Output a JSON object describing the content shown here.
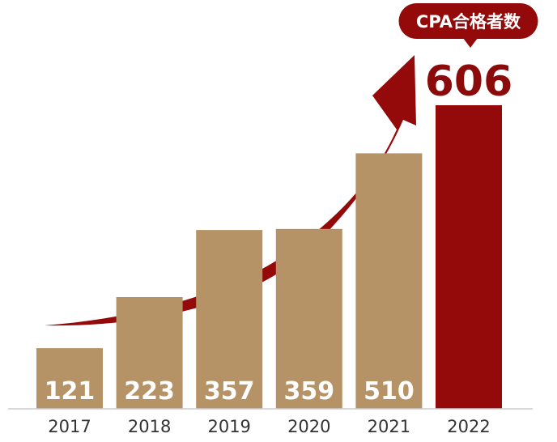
{
  "chart_data": {
    "type": "bar",
    "title": "",
    "xlabel": "",
    "ylabel": "",
    "ylim": [
      0,
      606
    ],
    "grid": false,
    "categories": [
      "2017",
      "2018",
      "2019",
      "2020",
      "2021",
      "2022"
    ],
    "values": [
      121,
      223,
      357,
      359,
      510,
      606
    ],
    "value_labels": [
      "121",
      "223",
      "357",
      "359",
      "510",
      "606"
    ],
    "highlight": {
      "category": "2022",
      "label": "CPA合格者数"
    },
    "colors": {
      "bar": "#b59366",
      "highlight_bar": "#940a0a",
      "arrow": "#940a0a",
      "bar_label": "#ffffff",
      "highlight_label": "#8b0a0a",
      "bubble": "#940a0a",
      "baseline": "#cccccc",
      "tick_label": "#333333"
    },
    "annotations": [
      "upward trend arrow"
    ]
  }
}
